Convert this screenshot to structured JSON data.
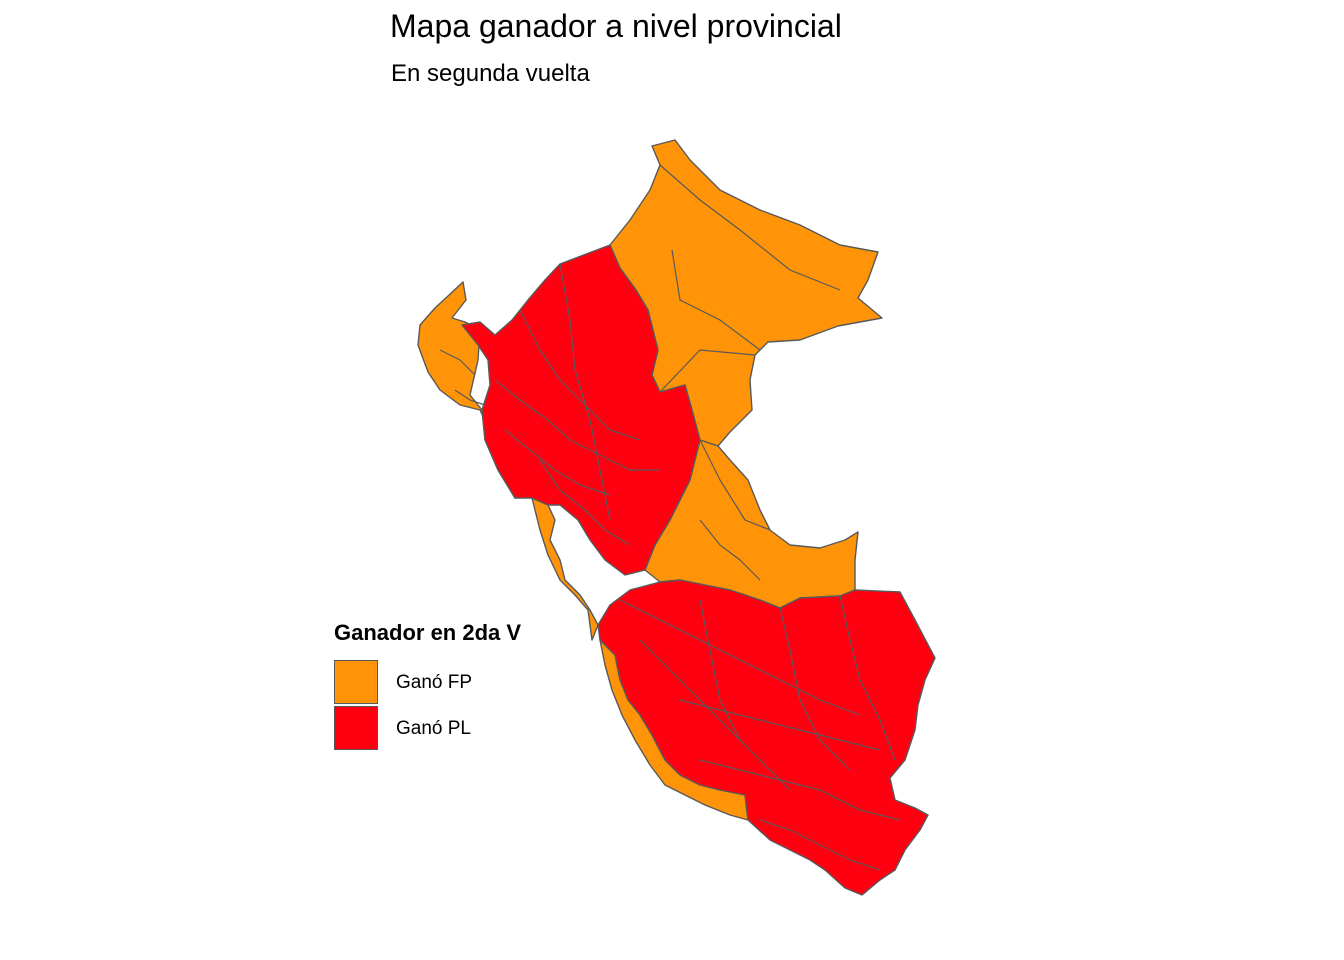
{
  "title": "Mapa ganador a nivel provincial",
  "subtitle": "En segunda vuelta",
  "legend": {
    "title": "Ganador en 2da V",
    "items": [
      {
        "label": "Ganó FP",
        "color": "#FF9408"
      },
      {
        "label": "Ganó PL",
        "color": "#FF0010"
      }
    ]
  },
  "colors": {
    "border": "#595959",
    "background": "#ffffff"
  }
}
